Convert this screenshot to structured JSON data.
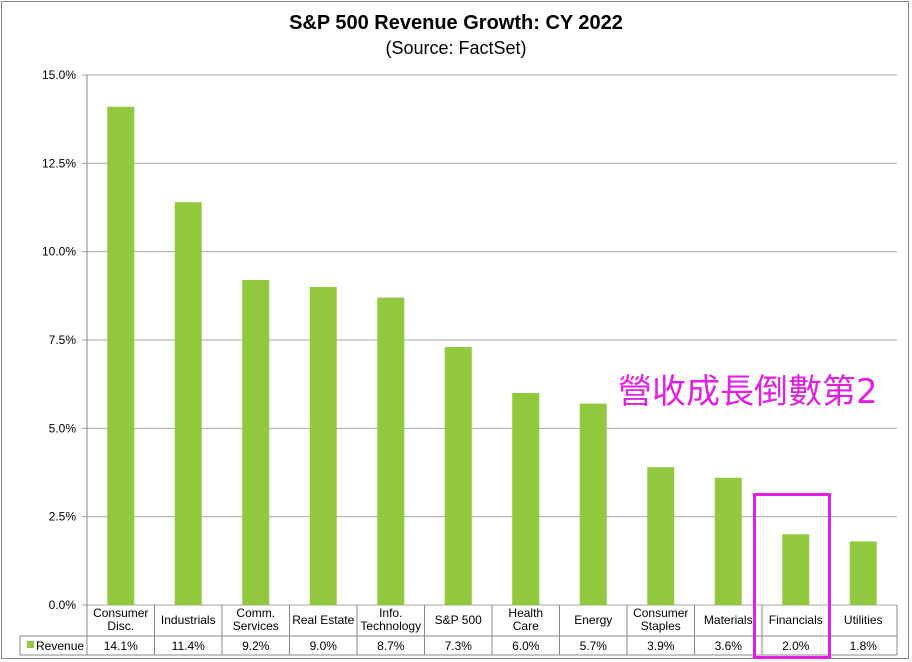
{
  "chart_data": {
    "type": "bar",
    "title": "S&P 500 Revenue Growth: CY 2022",
    "subtitle": "(Source: FactSet)",
    "categories": [
      [
        "Consumer",
        "Disc."
      ],
      [
        "Industrials"
      ],
      [
        "Comm.",
        "Services"
      ],
      [
        "Real Estate"
      ],
      [
        "Info.",
        "Technology"
      ],
      [
        "S&P 500"
      ],
      [
        "Health",
        "Care"
      ],
      [
        "Energy"
      ],
      [
        "Consumer",
        "Staples"
      ],
      [
        "Materials"
      ],
      [
        "Financials"
      ],
      [
        "Utilities"
      ]
    ],
    "series": [
      {
        "name": "Revenue",
        "values": [
          14.1,
          11.4,
          9.2,
          9.0,
          8.7,
          7.3,
          6.0,
          5.7,
          3.9,
          3.6,
          2.0,
          1.8
        ],
        "labels": [
          "14.1%",
          "11.4%",
          "9.2%",
          "9.0%",
          "8.7%",
          "7.3%",
          "6.0%",
          "5.7%",
          "3.9%",
          "3.6%",
          "2.0%",
          "1.8%"
        ],
        "color": "#92c83e"
      }
    ],
    "yticks": [
      "0.0%",
      "2.5%",
      "5.0%",
      "7.5%",
      "10.0%",
      "12.5%",
      "15.0%"
    ],
    "ytick_values": [
      0,
      2.5,
      5,
      7.5,
      10,
      12.5,
      15
    ],
    "ylim": [
      0,
      15
    ],
    "grid": true,
    "legend": "data-table",
    "annotation": "營收成長倒數第2",
    "highlight_category": "Financials",
    "highlight_color": "#e41fe4"
  }
}
